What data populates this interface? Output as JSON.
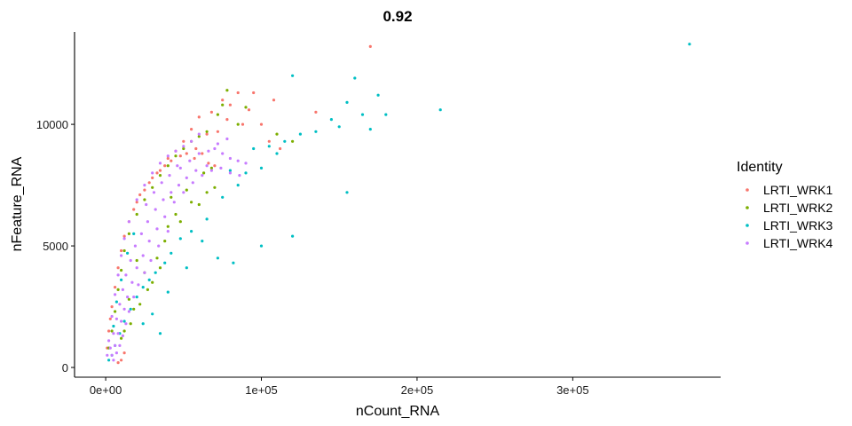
{
  "chart_data": {
    "type": "scatter",
    "title": "0.92",
    "xlabel": "nCount_RNA",
    "ylabel": "nFeature_RNA",
    "xlim": [
      -20000,
      395000
    ],
    "ylim": [
      -400,
      13800
    ],
    "xticks": [
      {
        "value": 0,
        "label": "0e+00"
      },
      {
        "value": 100000,
        "label": "1e+05"
      },
      {
        "value": 200000,
        "label": "2e+05"
      },
      {
        "value": 300000,
        "label": "3e+05"
      }
    ],
    "yticks": [
      {
        "value": 0,
        "label": "0"
      },
      {
        "value": 5000,
        "label": "5000"
      },
      {
        "value": 10000,
        "label": "10000"
      }
    ],
    "grid": false,
    "legend": {
      "title": "Identity",
      "position": "right"
    },
    "series": [
      {
        "name": "LRTI_WRK1",
        "color": "#F8766D",
        "points": [
          [
            170000,
            13200
          ],
          [
            85000,
            11300
          ],
          [
            95000,
            11300
          ],
          [
            108000,
            11000
          ],
          [
            75000,
            11000
          ],
          [
            80000,
            10800
          ],
          [
            135000,
            10500
          ],
          [
            92000,
            10600
          ],
          [
            68000,
            10500
          ],
          [
            78000,
            10200
          ],
          [
            88000,
            10000
          ],
          [
            100000,
            10000
          ],
          [
            60000,
            10300
          ],
          [
            55000,
            9800
          ],
          [
            65000,
            9600
          ],
          [
            72000,
            9700
          ],
          [
            105000,
            9300
          ],
          [
            112000,
            9000
          ],
          [
            50000,
            9300
          ],
          [
            45000,
            8900
          ],
          [
            40000,
            8600
          ],
          [
            58000,
            9000
          ],
          [
            62000,
            8800
          ],
          [
            35000,
            8100
          ],
          [
            30000,
            7800
          ],
          [
            25000,
            7300
          ],
          [
            20000,
            6800
          ],
          [
            15000,
            6000
          ],
          [
            12000,
            5400
          ],
          [
            10000,
            4800
          ],
          [
            8000,
            4100
          ],
          [
            6000,
            3300
          ],
          [
            4000,
            2500
          ],
          [
            2000,
            1500
          ],
          [
            1000,
            800
          ],
          [
            3000,
            2000
          ],
          [
            18000,
            6500
          ],
          [
            22000,
            7100
          ],
          [
            28000,
            7600
          ],
          [
            33000,
            8000
          ],
          [
            38000,
            8300
          ],
          [
            42000,
            8500
          ],
          [
            48000,
            8700
          ],
          [
            52000,
            8800
          ],
          [
            57000,
            8600
          ],
          [
            66000,
            8400
          ],
          [
            70000,
            8300
          ],
          [
            10000,
            300
          ],
          [
            12000,
            600
          ],
          [
            8000,
            200
          ]
        ]
      },
      {
        "name": "LRTI_WRK2",
        "color": "#7CAE00",
        "points": [
          [
            78000,
            11400
          ],
          [
            75000,
            10800
          ],
          [
            90000,
            10700
          ],
          [
            72000,
            10400
          ],
          [
            85000,
            10000
          ],
          [
            110000,
            9600
          ],
          [
            120000,
            9300
          ],
          [
            65000,
            9700
          ],
          [
            60000,
            9500
          ],
          [
            55000,
            9300
          ],
          [
            50000,
            9000
          ],
          [
            45000,
            8700
          ],
          [
            40000,
            8300
          ],
          [
            35000,
            7900
          ],
          [
            30000,
            7400
          ],
          [
            25000,
            6900
          ],
          [
            20000,
            6300
          ],
          [
            15000,
            5500
          ],
          [
            12000,
            4800
          ],
          [
            10000,
            4000
          ],
          [
            8000,
            3200
          ],
          [
            6000,
            2300
          ],
          [
            4000,
            1500
          ],
          [
            2000,
            800
          ],
          [
            20000,
            4400
          ],
          [
            25000,
            3900
          ],
          [
            30000,
            3500
          ],
          [
            35000,
            4100
          ],
          [
            40000,
            5800
          ],
          [
            45000,
            6300
          ],
          [
            60000,
            6700
          ],
          [
            65000,
            7200
          ],
          [
            70000,
            7400
          ],
          [
            15000,
            2800
          ],
          [
            18000,
            2400
          ],
          [
            22000,
            2600
          ],
          [
            27000,
            3200
          ],
          [
            33000,
            4500
          ],
          [
            38000,
            5200
          ],
          [
            48000,
            6000
          ],
          [
            55000,
            6800
          ],
          [
            42000,
            7000
          ],
          [
            52000,
            7300
          ],
          [
            63000,
            8000
          ],
          [
            68000,
            8200
          ],
          [
            12000,
            1500
          ],
          [
            16000,
            1800
          ],
          [
            10000,
            1200
          ]
        ]
      },
      {
        "name": "LRTI_WRK3",
        "color": "#00BFC4",
        "points": [
          [
            375000,
            13300
          ],
          [
            120000,
            12000
          ],
          [
            160000,
            11900
          ],
          [
            175000,
            11200
          ],
          [
            155000,
            10900
          ],
          [
            215000,
            10600
          ],
          [
            180000,
            10400
          ],
          [
            165000,
            10400
          ],
          [
            145000,
            10200
          ],
          [
            150000,
            9900
          ],
          [
            170000,
            9800
          ],
          [
            135000,
            9700
          ],
          [
            125000,
            9600
          ],
          [
            115000,
            9300
          ],
          [
            105000,
            9100
          ],
          [
            95000,
            9000
          ],
          [
            110000,
            8800
          ],
          [
            100000,
            8200
          ],
          [
            90000,
            8000
          ],
          [
            80000,
            8100
          ],
          [
            155000,
            7200
          ],
          [
            120000,
            5400
          ],
          [
            100000,
            5000
          ],
          [
            82000,
            4300
          ],
          [
            72000,
            4500
          ],
          [
            62000,
            5200
          ],
          [
            55000,
            5600
          ],
          [
            48000,
            5300
          ],
          [
            42000,
            4700
          ],
          [
            38000,
            4300
          ],
          [
            32000,
            3900
          ],
          [
            28000,
            3600
          ],
          [
            24000,
            3300
          ],
          [
            20000,
            2900
          ],
          [
            16000,
            2400
          ],
          [
            12000,
            1900
          ],
          [
            9000,
            1400
          ],
          [
            6000,
            900
          ],
          [
            4000,
            500
          ],
          [
            2000,
            300
          ],
          [
            5000,
            1700
          ],
          [
            7000,
            2700
          ],
          [
            10000,
            3600
          ],
          [
            14000,
            4700
          ],
          [
            18000,
            5500
          ],
          [
            30000,
            2200
          ],
          [
            35000,
            1400
          ],
          [
            24000,
            1800
          ],
          [
            40000,
            3100
          ],
          [
            52000,
            4100
          ],
          [
            65000,
            6100
          ],
          [
            75000,
            7000
          ],
          [
            85000,
            7500
          ]
        ]
      },
      {
        "name": "LRTI_WRK4",
        "color": "#C77CFF",
        "points": [
          [
            60000,
            9600
          ],
          [
            55000,
            9300
          ],
          [
            50000,
            9100
          ],
          [
            45000,
            8900
          ],
          [
            40000,
            8700
          ],
          [
            35000,
            8400
          ],
          [
            30000,
            8000
          ],
          [
            25000,
            7500
          ],
          [
            20000,
            6900
          ],
          [
            15000,
            6000
          ],
          [
            12000,
            5300
          ],
          [
            10000,
            4600
          ],
          [
            8000,
            3800
          ],
          [
            6000,
            3000
          ],
          [
            4000,
            2100
          ],
          [
            2000,
            1100
          ],
          [
            1000,
            500
          ],
          [
            70000,
            9000
          ],
          [
            75000,
            8800
          ],
          [
            80000,
            8600
          ],
          [
            85000,
            8500
          ],
          [
            90000,
            8400
          ],
          [
            65000,
            8300
          ],
          [
            58000,
            8100
          ],
          [
            52000,
            7800
          ],
          [
            47000,
            7500
          ],
          [
            42000,
            7200
          ],
          [
            37000,
            6900
          ],
          [
            32000,
            6500
          ],
          [
            27000,
            6000
          ],
          [
            23000,
            5500
          ],
          [
            19000,
            5000
          ],
          [
            16000,
            4400
          ],
          [
            13000,
            3800
          ],
          [
            11000,
            3200
          ],
          [
            9000,
            2600
          ],
          [
            7000,
            2000
          ],
          [
            5000,
            1400
          ],
          [
            3000,
            800
          ],
          [
            38000,
            6200
          ],
          [
            33000,
            5700
          ],
          [
            28000,
            5200
          ],
          [
            24000,
            4600
          ],
          [
            20000,
            4100
          ],
          [
            17000,
            3500
          ],
          [
            14000,
            2900
          ],
          [
            12000,
            2400
          ],
          [
            10000,
            1900
          ],
          [
            8000,
            1400
          ],
          [
            6000,
            900
          ],
          [
            4000,
            500
          ],
          [
            44000,
            6800
          ],
          [
            50000,
            7200
          ],
          [
            56000,
            7600
          ],
          [
            62000,
            7900
          ],
          [
            68000,
            8100
          ],
          [
            74000,
            8200
          ],
          [
            80000,
            8000
          ],
          [
            86000,
            7900
          ],
          [
            40000,
            5600
          ],
          [
            34000,
            5000
          ],
          [
            29000,
            4400
          ],
          [
            25000,
            3900
          ],
          [
            21000,
            3400
          ],
          [
            18000,
            2900
          ],
          [
            15000,
            2300
          ],
          [
            13000,
            1800
          ],
          [
            11000,
            1300
          ],
          [
            9000,
            900
          ],
          [
            7000,
            600
          ],
          [
            5000,
            300
          ],
          [
            48000,
            8200
          ],
          [
            54000,
            8500
          ],
          [
            60000,
            8800
          ],
          [
            66000,
            8900
          ],
          [
            72000,
            9200
          ],
          [
            78000,
            9400
          ],
          [
            26000,
            6700
          ],
          [
            31000,
            7200
          ],
          [
            36000,
            7600
          ],
          [
            41000,
            7900
          ],
          [
            46000,
            8300
          ]
        ]
      }
    ]
  }
}
